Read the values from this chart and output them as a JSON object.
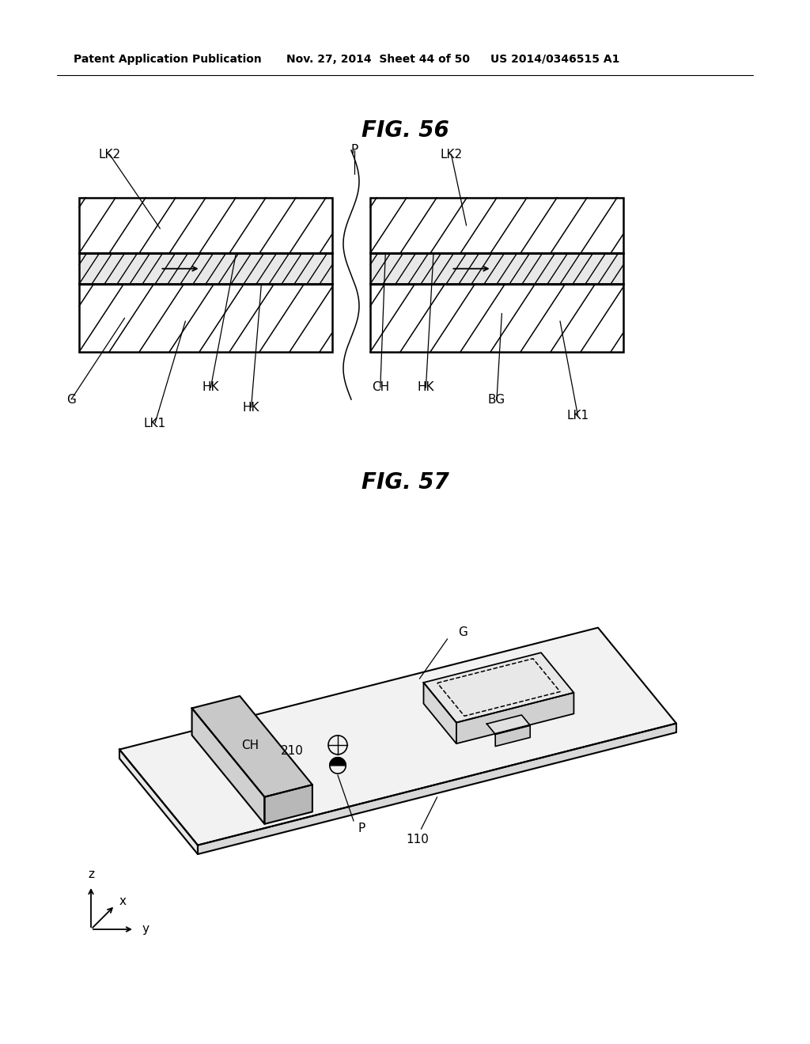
{
  "bg_color": "#ffffff",
  "header_text": "Patent Application Publication",
  "header_date": "Nov. 27, 2014  Sheet 44 of 50",
  "header_patent": "US 2014/0346515 A1",
  "fig56_title": "FIG. 56",
  "fig57_title": "FIG. 57"
}
